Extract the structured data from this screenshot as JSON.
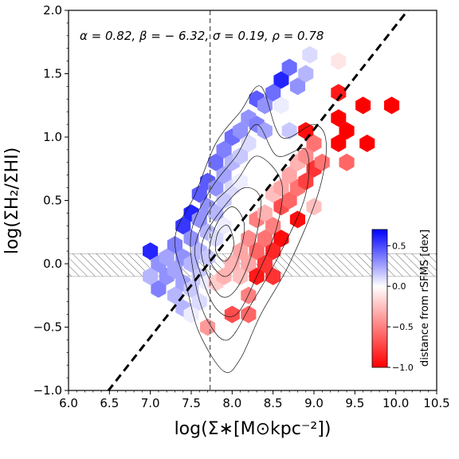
{
  "chart_data": {
    "type": "heatmap",
    "subtype": "hexbin-scatter with density contours",
    "xlabel": "log(Σ∗[M⊙kpc⁻²])",
    "ylabel": "log(ΣH₂/ΣHI)",
    "xlim": [
      6.0,
      10.5
    ],
    "ylim": [
      -1.0,
      2.0
    ],
    "xticks": [
      "6.0",
      "6.5",
      "7.0",
      "7.5",
      "8.0",
      "8.5",
      "9.0",
      "9.5",
      "10.0",
      "10.5"
    ],
    "yticks": [
      "−1.0",
      "−0.5",
      "0.0",
      "0.5",
      "1.0",
      "1.5",
      "2.0"
    ],
    "annotation": "α = 0.82, β = − 6.32, σ = 0.19, ρ = 0.78",
    "fit_line": {
      "slope": 0.82,
      "intercept": -6.32,
      "style": "black dashed"
    },
    "vertical_line": {
      "x": 7.73,
      "style": "gray dashed"
    },
    "hatched_band": {
      "y": [
        -0.1,
        0.08
      ]
    },
    "colorbar": {
      "label": "distance from rSFMS [dex]",
      "range": [
        -1.0,
        0.7
      ],
      "ticks": [
        "0.5",
        "0.0",
        "−0.5",
        "−1.0"
      ],
      "colors": {
        "high": "#0000ff",
        "mid": "#ffffff",
        "low": "#ff0000"
      }
    },
    "contours": [
      {
        "level": 1,
        "points": [
          [
            7.45,
            -0.2
          ],
          [
            7.6,
            -0.55
          ],
          [
            7.9,
            -0.85
          ],
          [
            8.1,
            -0.75
          ],
          [
            8.35,
            -0.4
          ],
          [
            8.7,
            0.0
          ],
          [
            9.05,
            0.55
          ],
          [
            9.15,
            0.95
          ],
          [
            9.0,
            1.1
          ],
          [
            8.6,
            1.0
          ],
          [
            8.35,
            1.4
          ],
          [
            8.1,
            1.2
          ],
          [
            7.8,
            0.95
          ],
          [
            7.55,
            0.55
          ],
          [
            7.3,
            0.2
          ]
        ]
      },
      {
        "level": 2,
        "points": [
          [
            7.55,
            -0.15
          ],
          [
            7.7,
            -0.45
          ],
          [
            7.95,
            -0.6
          ],
          [
            8.25,
            -0.3
          ],
          [
            8.6,
            0.1
          ],
          [
            8.9,
            0.55
          ],
          [
            8.9,
            0.9
          ],
          [
            8.55,
            0.85
          ],
          [
            8.3,
            1.1
          ],
          [
            8.05,
            0.85
          ],
          [
            7.75,
            0.6
          ],
          [
            7.5,
            0.25
          ]
        ]
      },
      {
        "level": 3,
        "points": [
          [
            7.6,
            -0.05
          ],
          [
            7.8,
            -0.35
          ],
          [
            8.05,
            -0.4
          ],
          [
            8.3,
            -0.1
          ],
          [
            8.55,
            0.3
          ],
          [
            8.6,
            0.65
          ],
          [
            8.3,
            0.85
          ],
          [
            8.05,
            0.65
          ],
          [
            7.75,
            0.45
          ],
          [
            7.55,
            0.15
          ]
        ]
      },
      {
        "level": 4,
        "points": [
          [
            7.65,
            0.0
          ],
          [
            7.85,
            -0.25
          ],
          [
            8.05,
            -0.2
          ],
          [
            8.25,
            0.1
          ],
          [
            8.35,
            0.5
          ],
          [
            8.15,
            0.6
          ],
          [
            7.9,
            0.45
          ],
          [
            7.65,
            0.2
          ]
        ]
      },
      {
        "level": 5,
        "points": [
          [
            7.72,
            0.05
          ],
          [
            7.9,
            -0.1
          ],
          [
            8.05,
            0.0
          ],
          [
            8.15,
            0.3
          ],
          [
            8.0,
            0.45
          ],
          [
            7.8,
            0.3
          ]
        ]
      },
      {
        "level": 6,
        "points": [
          [
            7.8,
            0.1
          ],
          [
            7.92,
            0.02
          ],
          [
            8.02,
            0.15
          ],
          [
            7.95,
            0.3
          ],
          [
            7.83,
            0.25
          ]
        ]
      }
    ],
    "hexbins": [
      [
        7.0,
        0.1,
        0.6
      ],
      [
        7.1,
        0.0,
        0.3
      ],
      [
        7.0,
        -0.1,
        0.2
      ],
      [
        7.1,
        -0.2,
        0.35
      ],
      [
        7.2,
        -0.1,
        0.3
      ],
      [
        7.2,
        0.05,
        0.25
      ],
      [
        7.3,
        0.15,
        0.35
      ],
      [
        7.3,
        -0.05,
        0.25
      ],
      [
        7.3,
        -0.25,
        0.2
      ],
      [
        7.4,
        0.3,
        0.55
      ],
      [
        7.4,
        0.05,
        0.3
      ],
      [
        7.4,
        -0.15,
        0.25
      ],
      [
        7.4,
        -0.35,
        0.2
      ],
      [
        7.5,
        0.4,
        0.6
      ],
      [
        7.5,
        0.2,
        0.3
      ],
      [
        7.5,
        0.0,
        0.2
      ],
      [
        7.5,
        -0.2,
        0.15
      ],
      [
        7.5,
        -0.4,
        0.05
      ],
      [
        7.6,
        0.55,
        0.45
      ],
      [
        7.6,
        0.35,
        0.3
      ],
      [
        7.6,
        0.1,
        0.2
      ],
      [
        7.6,
        -0.1,
        0.15
      ],
      [
        7.6,
        -0.3,
        0.1
      ],
      [
        7.7,
        0.65,
        0.45
      ],
      [
        7.7,
        0.45,
        0.3
      ],
      [
        7.7,
        0.25,
        0.2
      ],
      [
        7.7,
        0.05,
        0.15
      ],
      [
        7.7,
        -0.15,
        0.05
      ],
      [
        7.8,
        0.8,
        0.4
      ],
      [
        7.8,
        0.6,
        0.3
      ],
      [
        7.8,
        0.4,
        0.2
      ],
      [
        7.8,
        0.2,
        0.1
      ],
      [
        7.9,
        0.9,
        0.35
      ],
      [
        7.9,
        0.7,
        0.25
      ],
      [
        7.9,
        0.5,
        0.15
      ],
      [
        7.9,
        0.3,
        0.05
      ],
      [
        8.0,
        1.0,
        0.4
      ],
      [
        8.0,
        0.8,
        0.2
      ],
      [
        8.0,
        0.6,
        0.1
      ],
      [
        8.0,
        0.4,
        0.0
      ],
      [
        8.1,
        1.05,
        0.3
      ],
      [
        8.1,
        0.85,
        0.15
      ],
      [
        8.1,
        0.65,
        0.05
      ],
      [
        8.2,
        1.15,
        0.3
      ],
      [
        8.2,
        0.95,
        0.1
      ],
      [
        8.3,
        1.3,
        0.45
      ],
      [
        8.3,
        1.1,
        0.35
      ],
      [
        8.4,
        1.25,
        0.3
      ],
      [
        8.4,
        1.05,
        0.25
      ],
      [
        8.5,
        1.35,
        0.4
      ],
      [
        8.6,
        1.45,
        0.6
      ],
      [
        8.6,
        1.25,
        0.05
      ],
      [
        8.7,
        1.55,
        0.4
      ],
      [
        8.8,
        1.4,
        0.3
      ],
      [
        8.9,
        1.5,
        0.2
      ],
      [
        8.95,
        1.65,
        0.1
      ],
      [
        8.7,
        1.05,
        0.15
      ],
      [
        7.8,
        -0.15,
        -0.2
      ],
      [
        7.7,
        -0.5,
        -0.4
      ],
      [
        7.9,
        -0.1,
        -0.3
      ],
      [
        8.0,
        0.0,
        -0.3
      ],
      [
        8.0,
        -0.4,
        -0.7
      ],
      [
        8.1,
        0.1,
        -0.35
      ],
      [
        8.1,
        -0.1,
        -0.25
      ],
      [
        8.2,
        0.2,
        -0.45
      ],
      [
        8.2,
        0.0,
        -0.35
      ],
      [
        8.2,
        -0.25,
        -0.5
      ],
      [
        8.3,
        0.35,
        -0.5
      ],
      [
        8.3,
        0.1,
        -0.6
      ],
      [
        8.3,
        -0.1,
        -0.9
      ],
      [
        8.4,
        0.4,
        -0.3
      ],
      [
        8.4,
        0.2,
        -0.55
      ],
      [
        8.4,
        0.0,
        -0.8
      ],
      [
        8.5,
        0.55,
        -0.25
      ],
      [
        8.5,
        0.3,
        -0.5
      ],
      [
        8.5,
        0.1,
        -0.85
      ],
      [
        8.6,
        0.6,
        -0.35
      ],
      [
        8.6,
        0.45,
        -0.7
      ],
      [
        8.6,
        0.2,
        -0.95
      ],
      [
        8.7,
        0.7,
        -0.35
      ],
      [
        8.7,
        0.5,
        -0.6
      ],
      [
        8.8,
        0.8,
        -0.3
      ],
      [
        8.8,
        0.6,
        -0.55
      ],
      [
        8.8,
        0.35,
        -0.95
      ],
      [
        8.9,
        0.85,
        -0.45
      ],
      [
        8.9,
        0.65,
        -0.75
      ],
      [
        9.0,
        0.95,
        -0.55
      ],
      [
        9.0,
        0.75,
        -0.8
      ],
      [
        9.0,
        0.45,
        -0.25
      ],
      [
        9.1,
        0.8,
        -0.55
      ],
      [
        8.9,
        1.05,
        -0.95
      ],
      [
        9.3,
        1.15,
        -1.0
      ],
      [
        9.3,
        0.95,
        -1.0
      ],
      [
        9.4,
        1.05,
        -1.0
      ],
      [
        9.4,
        0.8,
        -0.6
      ],
      [
        9.3,
        1.35,
        -0.9
      ],
      [
        9.6,
        1.25,
        -1.0
      ],
      [
        9.95,
        1.25,
        -1.0
      ],
      [
        9.65,
        0.95,
        -1.0
      ],
      [
        9.3,
        1.6,
        -0.1
      ],
      [
        8.2,
        -0.4,
        -0.6
      ],
      [
        8.5,
        -0.1,
        -0.8
      ]
    ]
  }
}
